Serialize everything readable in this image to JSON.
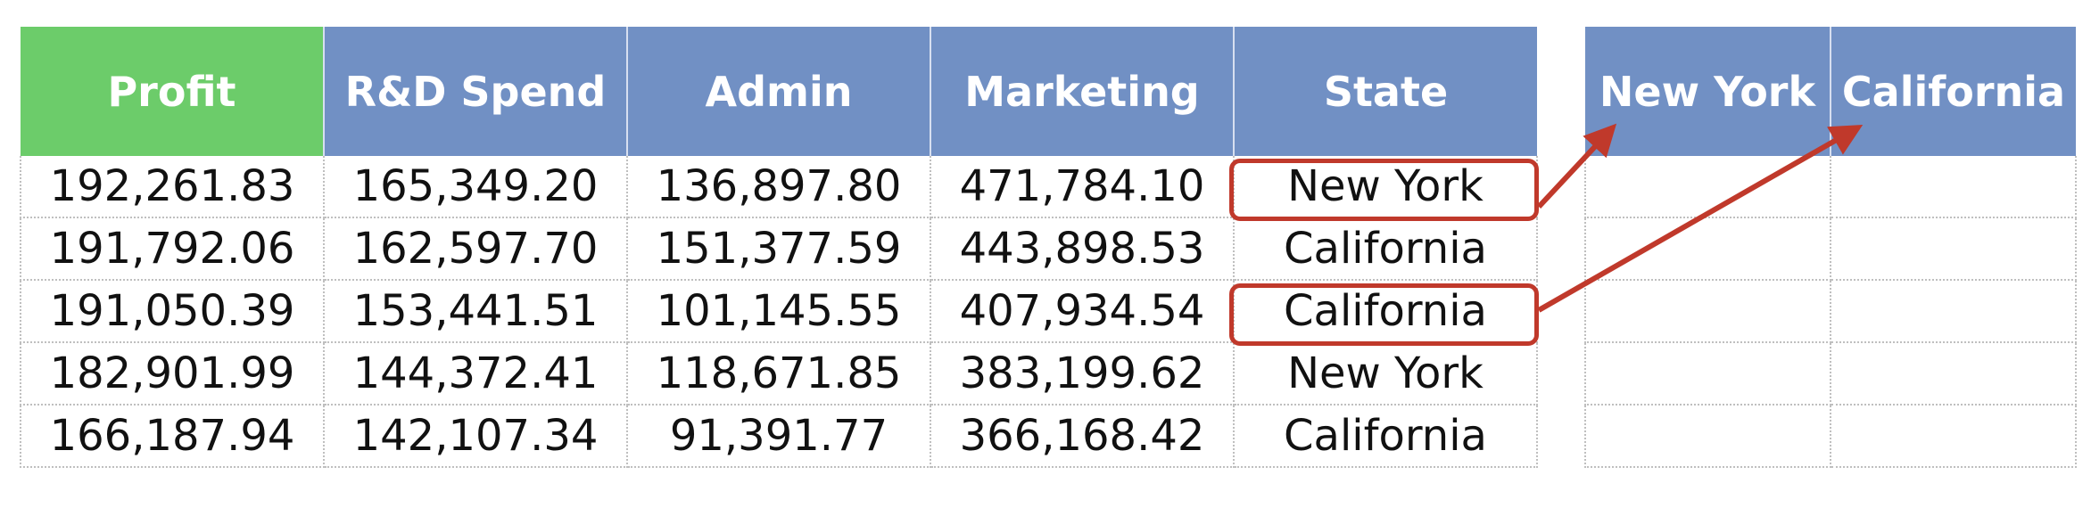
{
  "main_table": {
    "headers": [
      "Profit",
      "R&D Spend",
      "Admin",
      "Marketing",
      "State"
    ],
    "rows": [
      [
        "192,261.83",
        "165,349.20",
        "136,897.80",
        "471,784.10",
        "New York"
      ],
      [
        "191,792.06",
        "162,597.70",
        "151,377.59",
        "443,898.53",
        "California"
      ],
      [
        "191,050.39",
        "153,441.51",
        "101,145.55",
        "407,934.54",
        "California"
      ],
      [
        "182,901.99",
        "144,372.41",
        "118,671.85",
        "383,199.62",
        "New York"
      ],
      [
        "166,187.94",
        "142,107.34",
        "91,391.77",
        "366,168.42",
        "California"
      ]
    ]
  },
  "dummy_table": {
    "headers": [
      "New York",
      "California"
    ],
    "rows": [
      [
        "",
        ""
      ],
      [
        "",
        ""
      ],
      [
        "",
        ""
      ],
      [
        "",
        ""
      ],
      [
        "",
        ""
      ]
    ]
  },
  "colors": {
    "profit_header": "#6ccc6a",
    "other_headers": "#7190c4",
    "highlight": "#c0392b"
  }
}
